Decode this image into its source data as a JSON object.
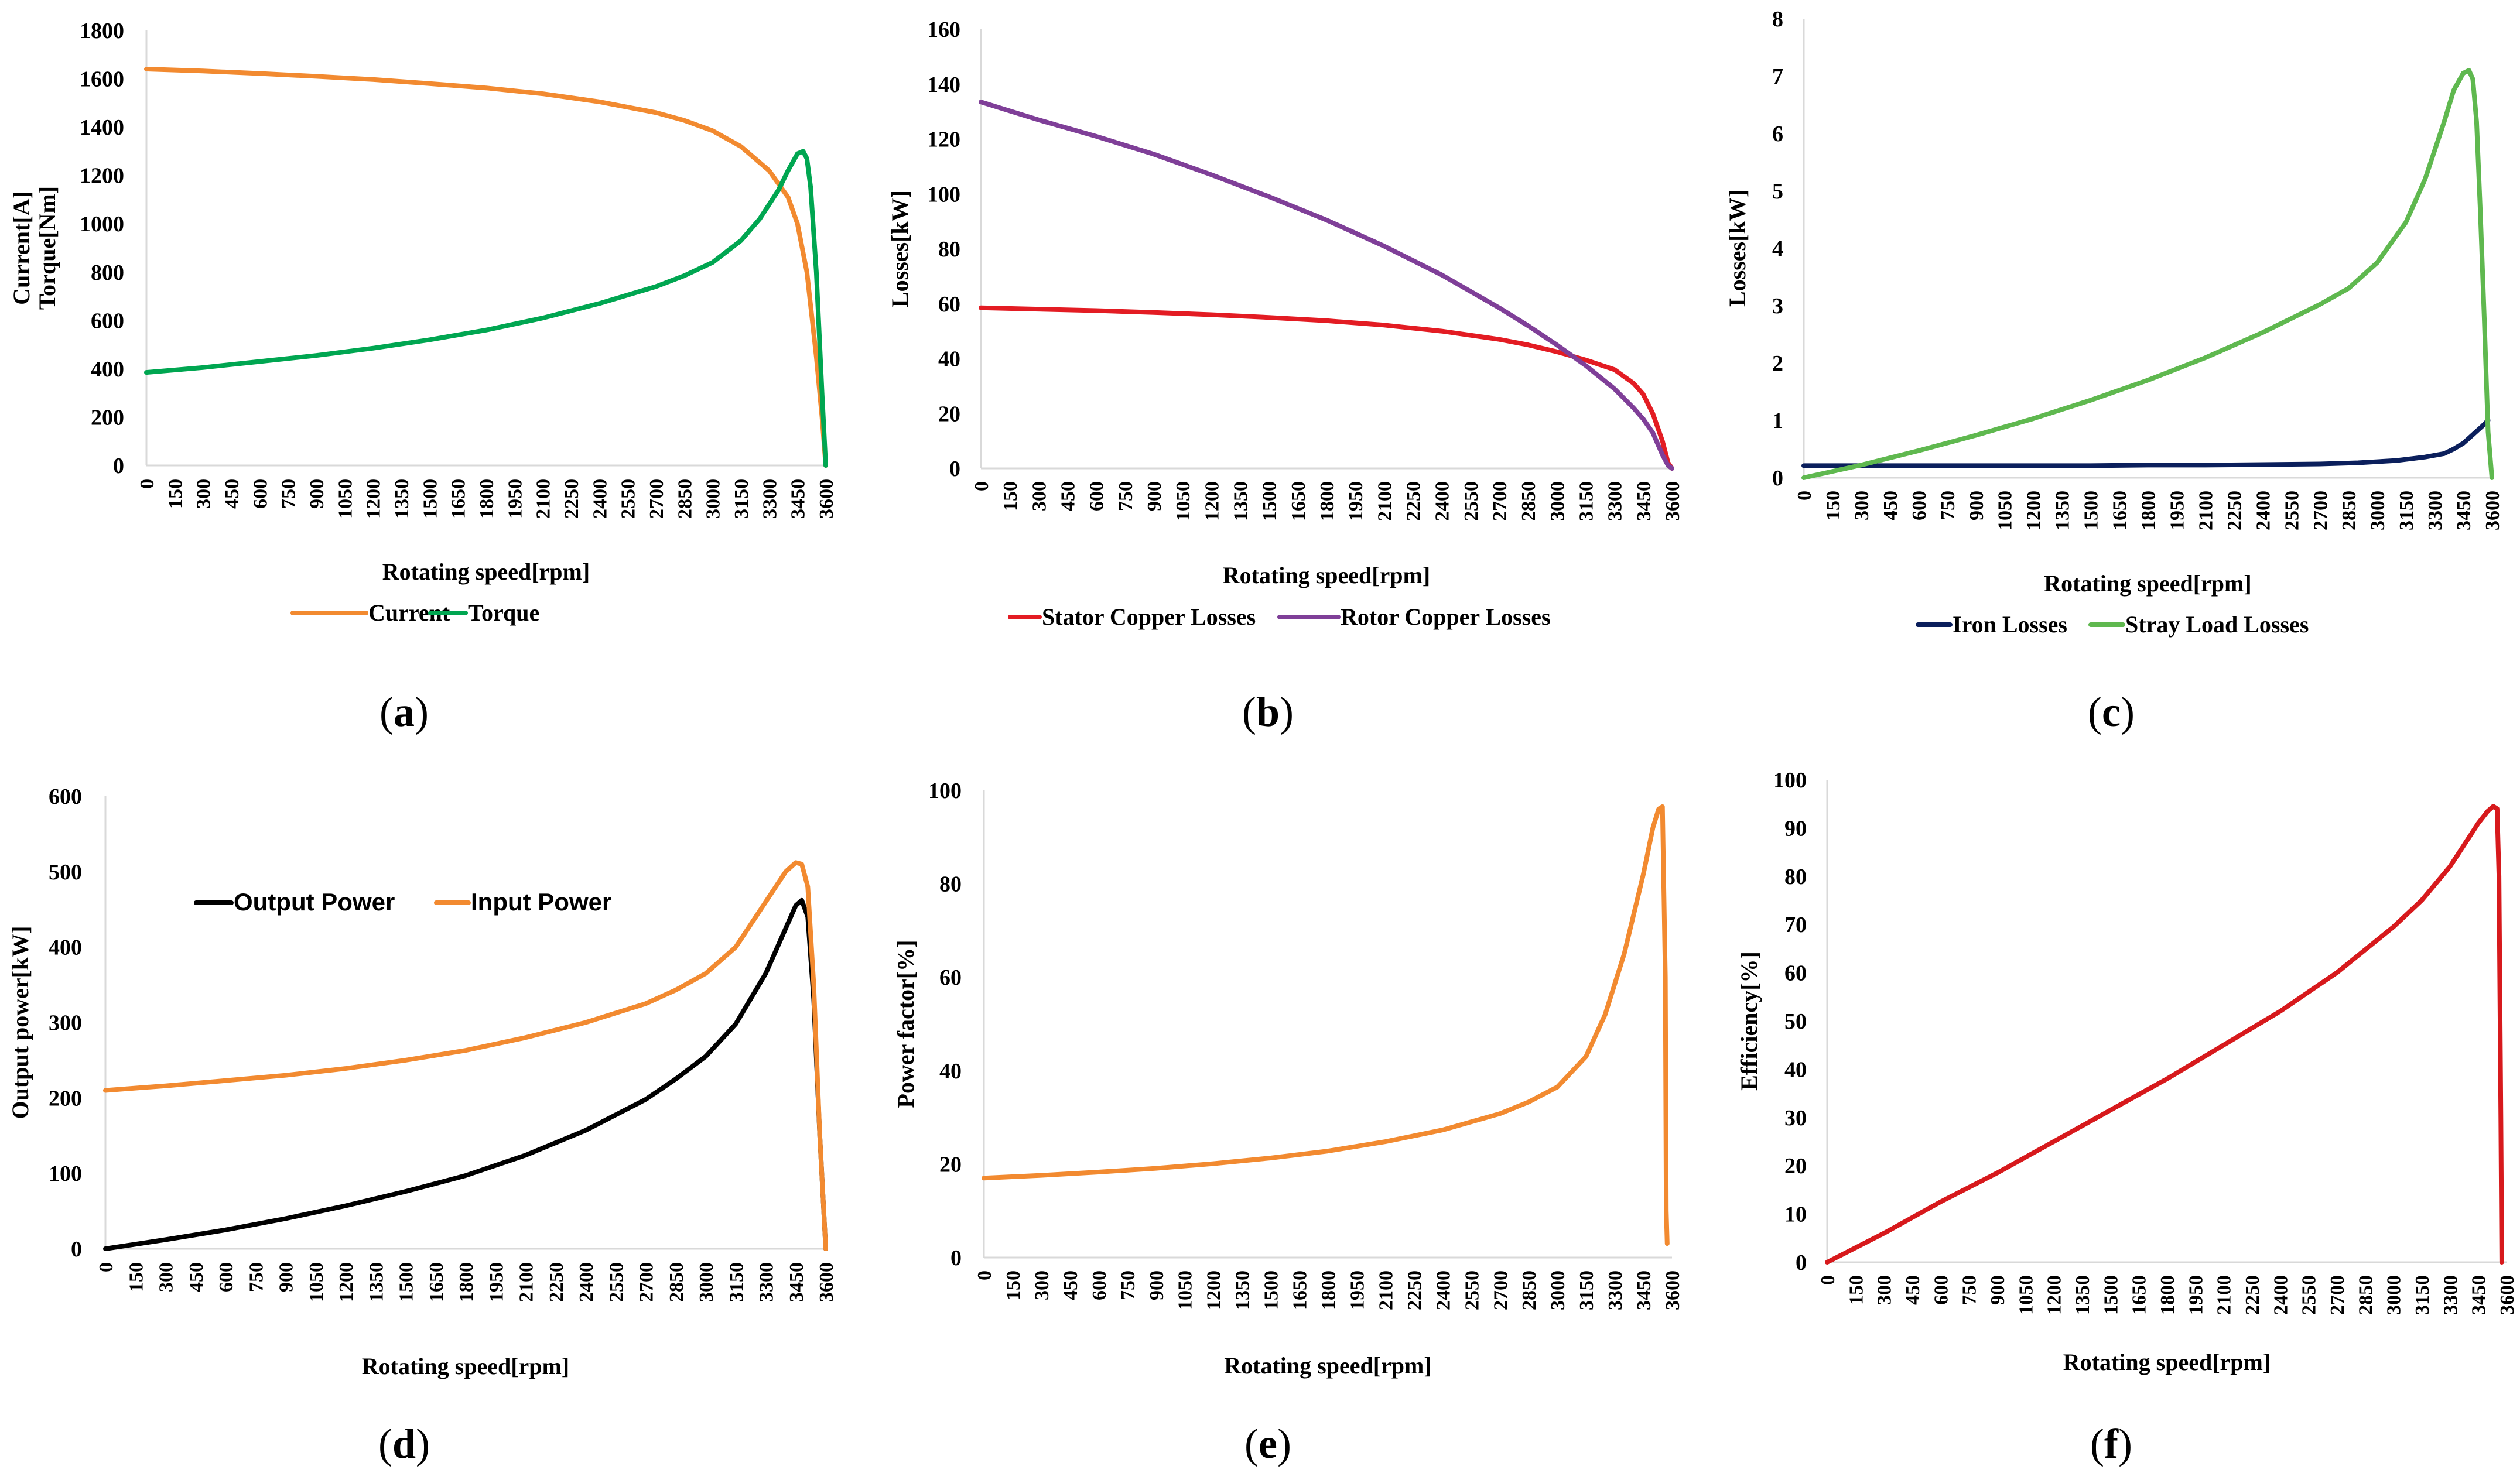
{
  "colors": {
    "orange": "#f28a30",
    "green": "#00a651",
    "red": "#e31c23",
    "purple": "#7f3f98",
    "navy": "#0b1f5c",
    "lightgreen": "#5fb84f",
    "black": "#000000",
    "darkred": "#d7191c"
  },
  "chart_data": [
    {
      "id": "a",
      "type": "line",
      "panel_label": "a",
      "xlabel": "Rotating speed[rpm]",
      "ylabel_lines": [
        "Current[A]",
        "Torque[Nm]"
      ],
      "xlim": [
        0,
        3600
      ],
      "ylim": [
        0,
        1800
      ],
      "yticks": [
        0,
        200,
        400,
        600,
        800,
        1000,
        1200,
        1400,
        1600,
        1800
      ],
      "xticks": [
        0,
        150,
        300,
        450,
        600,
        750,
        900,
        1050,
        1200,
        1350,
        1500,
        1650,
        1800,
        1950,
        2100,
        2250,
        2400,
        2550,
        2700,
        2850,
        3000,
        3150,
        3300,
        3450,
        3600
      ],
      "legend_position": "bottom",
      "series": [
        {
          "name": "Current",
          "color": "orange",
          "x": [
            0,
            300,
            600,
            900,
            1200,
            1500,
            1800,
            2100,
            2400,
            2700,
            2850,
            3000,
            3150,
            3300,
            3400,
            3450,
            3500,
            3550,
            3580,
            3600
          ],
          "y": [
            1640,
            1632,
            1622,
            1610,
            1597,
            1580,
            1562,
            1538,
            1505,
            1460,
            1428,
            1385,
            1320,
            1220,
            1110,
            1000,
            800,
            450,
            200,
            0
          ]
        },
        {
          "name": "Torque",
          "color": "green",
          "x": [
            0,
            300,
            600,
            900,
            1200,
            1500,
            1800,
            2100,
            2400,
            2700,
            2850,
            3000,
            3150,
            3250,
            3350,
            3400,
            3450,
            3480,
            3500,
            3520,
            3550,
            3580,
            3600
          ],
          "y": [
            385,
            405,
            430,
            455,
            485,
            520,
            560,
            610,
            670,
            740,
            785,
            840,
            930,
            1020,
            1140,
            1220,
            1290,
            1300,
            1270,
            1150,
            800,
            300,
            0
          ]
        }
      ]
    },
    {
      "id": "b",
      "type": "line",
      "panel_label": "b",
      "xlabel": "Rotating speed[rpm]",
      "ylabel_lines": [
        "Losses[kW]"
      ],
      "xlim": [
        0,
        3600
      ],
      "ylim": [
        0,
        160
      ],
      "yticks": [
        0,
        20,
        40,
        60,
        80,
        100,
        120,
        140,
        160
      ],
      "xticks": [
        0,
        150,
        300,
        450,
        600,
        750,
        900,
        1050,
        1200,
        1350,
        1500,
        1650,
        1800,
        1950,
        2100,
        2250,
        2400,
        2550,
        2700,
        2850,
        3000,
        3150,
        3300,
        3450,
        3600
      ],
      "legend_position": "bottom",
      "series": [
        {
          "name": "Stator Copper Losses",
          "color": "red",
          "x": [
            0,
            300,
            600,
            900,
            1200,
            1500,
            1800,
            2100,
            2400,
            2700,
            2850,
            3000,
            3150,
            3300,
            3400,
            3450,
            3500,
            3550,
            3580,
            3600
          ],
          "y": [
            58.5,
            58,
            57.5,
            56.8,
            56,
            55,
            53.8,
            52.2,
            50,
            47,
            45,
            42.5,
            39.5,
            36,
            31,
            27,
            20,
            10,
            2,
            0
          ]
        },
        {
          "name": "Rotor Copper Losses",
          "color": "purple",
          "x": [
            0,
            300,
            600,
            900,
            1200,
            1500,
            1800,
            2100,
            2400,
            2700,
            2850,
            3000,
            3150,
            3300,
            3400,
            3450,
            3500,
            3550,
            3580,
            3600
          ],
          "y": [
            133.5,
            127,
            121,
            114.5,
            107,
            99,
            90.5,
            81,
            70.5,
            58.5,
            52,
            45,
            37.5,
            29,
            22,
            18,
            13,
            5,
            1,
            0
          ]
        }
      ]
    },
    {
      "id": "c",
      "type": "line",
      "panel_label": "c",
      "xlabel": "Rotating speed[rpm]",
      "ylabel_lines": [
        "Losses[kW]"
      ],
      "xlim": [
        0,
        3600
      ],
      "ylim": [
        0,
        8
      ],
      "yticks": [
        0,
        1,
        2,
        3,
        4,
        5,
        6,
        7,
        8
      ],
      "xticks": [
        0,
        150,
        300,
        450,
        600,
        750,
        900,
        1050,
        1200,
        1350,
        1500,
        1650,
        1800,
        1950,
        2100,
        2250,
        2400,
        2550,
        2700,
        2850,
        3000,
        3150,
        3300,
        3450,
        3600
      ],
      "legend_position": "bottom",
      "series": [
        {
          "name": "Iron Losses",
          "color": "navy",
          "x": [
            0,
            300,
            600,
            900,
            1200,
            1500,
            1800,
            2100,
            2400,
            2700,
            2900,
            3100,
            3250,
            3350,
            3400,
            3450,
            3500,
            3550,
            3580
          ],
          "y": [
            0.21,
            0.21,
            0.21,
            0.21,
            0.21,
            0.21,
            0.22,
            0.22,
            0.23,
            0.24,
            0.26,
            0.3,
            0.36,
            0.42,
            0.5,
            0.6,
            0.75,
            0.9,
            1.0
          ]
        },
        {
          "name": "Stray Load Losses",
          "color": "lightgreen",
          "x": [
            0,
            300,
            600,
            900,
            1200,
            1500,
            1800,
            2100,
            2400,
            2700,
            2850,
            3000,
            3150,
            3250,
            3350,
            3400,
            3450,
            3480,
            3500,
            3520,
            3540,
            3560,
            3580,
            3600
          ],
          "y": [
            0.0,
            0.22,
            0.47,
            0.74,
            1.03,
            1.35,
            1.7,
            2.09,
            2.53,
            3.02,
            3.3,
            3.75,
            4.45,
            5.2,
            6.2,
            6.75,
            7.05,
            7.1,
            6.95,
            6.2,
            4.6,
            2.8,
            0.8,
            0.0
          ]
        }
      ]
    },
    {
      "id": "d",
      "type": "line",
      "panel_label": "d",
      "xlabel": "Rotating speed[rpm]",
      "ylabel_lines": [
        "Output power[kW]"
      ],
      "xlim": [
        0,
        3600
      ],
      "ylim": [
        0,
        600
      ],
      "yticks": [
        0,
        100,
        200,
        300,
        400,
        500,
        600
      ],
      "xticks": [
        0,
        150,
        300,
        450,
        600,
        750,
        900,
        1050,
        1200,
        1350,
        1500,
        1650,
        1800,
        1950,
        2100,
        2250,
        2400,
        2550,
        2700,
        2850,
        3000,
        3150,
        3300,
        3450,
        3600
      ],
      "legend_position": "top-left",
      "series": [
        {
          "name": "Output Power",
          "color": "black",
          "x": [
            0,
            300,
            600,
            900,
            1200,
            1500,
            1800,
            2100,
            2400,
            2700,
            2850,
            3000,
            3150,
            3300,
            3400,
            3450,
            3480,
            3510,
            3540,
            3570,
            3600
          ],
          "y": [
            0,
            12,
            25,
            40,
            57,
            76,
            97,
            124,
            157,
            198,
            225,
            255,
            298,
            365,
            425,
            455,
            462,
            440,
            330,
            150,
            0
          ]
        },
        {
          "name": "Input Power",
          "color": "orange",
          "x": [
            0,
            300,
            600,
            900,
            1200,
            1500,
            1800,
            2100,
            2400,
            2700,
            2850,
            3000,
            3150,
            3300,
            3400,
            3450,
            3480,
            3510,
            3540,
            3570,
            3600
          ],
          "y": [
            210,
            216,
            223,
            230,
            239,
            250,
            263,
            280,
            300,
            325,
            343,
            365,
            400,
            460,
            500,
            512,
            510,
            480,
            350,
            150,
            0
          ]
        }
      ]
    },
    {
      "id": "e",
      "type": "line",
      "panel_label": "e",
      "xlabel": "Rotating speed[rpm]",
      "ylabel_lines": [
        "Power factor[%]"
      ],
      "xlim": [
        0,
        3600
      ],
      "ylim": [
        0,
        100
      ],
      "yticks": [
        0,
        20,
        40,
        60,
        80,
        100
      ],
      "xticks": [
        0,
        150,
        300,
        450,
        600,
        750,
        900,
        1050,
        1200,
        1350,
        1500,
        1650,
        1800,
        1950,
        2100,
        2250,
        2400,
        2550,
        2700,
        2850,
        3000,
        3150,
        3300,
        3450,
        3600
      ],
      "legend_position": "none",
      "series": [
        {
          "name": "",
          "color": "orange",
          "x": [
            0,
            300,
            600,
            900,
            1200,
            1500,
            1800,
            2100,
            2400,
            2700,
            2850,
            3000,
            3150,
            3250,
            3350,
            3450,
            3500,
            3530,
            3550,
            3565,
            3570,
            3575
          ],
          "y": [
            17,
            17.6,
            18.3,
            19.1,
            20.1,
            21.3,
            22.8,
            24.8,
            27.3,
            30.8,
            33.3,
            36.5,
            43,
            52,
            65,
            82,
            92,
            96,
            96.5,
            60,
            10,
            3
          ]
        }
      ]
    },
    {
      "id": "f",
      "type": "line",
      "panel_label": "f",
      "xlabel": "Rotating speed[rpm]",
      "ylabel_lines": [
        "Efficiency[%]"
      ],
      "xlim": [
        0,
        3600
      ],
      "ylim": [
        0,
        100
      ],
      "yticks": [
        0,
        10,
        20,
        30,
        40,
        50,
        60,
        70,
        80,
        90,
        100
      ],
      "xticks": [
        0,
        150,
        300,
        450,
        600,
        750,
        900,
        1050,
        1200,
        1350,
        1500,
        1650,
        1800,
        1950,
        2100,
        2250,
        2400,
        2550,
        2700,
        2850,
        3000,
        3150,
        3300,
        3450,
        3600
      ],
      "legend_position": "none",
      "series": [
        {
          "name": "",
          "color": "darkred",
          "x": [
            0,
            300,
            600,
            900,
            1200,
            1500,
            1800,
            2100,
            2400,
            2700,
            3000,
            3150,
            3300,
            3400,
            3450,
            3500,
            3530,
            3550,
            3560,
            3570,
            3575
          ],
          "y": [
            0,
            6,
            12.5,
            18.5,
            25,
            31.5,
            38,
            45,
            52,
            60,
            69.5,
            75,
            82,
            88,
            91,
            93.5,
            94.5,
            94,
            80,
            30,
            0
          ]
        }
      ]
    }
  ]
}
